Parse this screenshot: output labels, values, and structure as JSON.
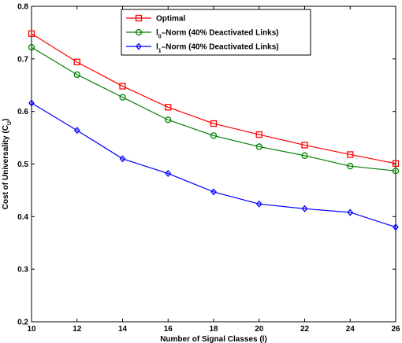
{
  "chart_data": {
    "type": "line",
    "xlabel": "Number of Signal Classes (l)",
    "ylabel": "Cost of Universality (C",
    "ylabel_sub": "U",
    "ylabel_close": ")",
    "xlim": [
      10,
      26
    ],
    "ylim": [
      0.2,
      0.8
    ],
    "xticks": [
      10,
      12,
      14,
      16,
      18,
      20,
      22,
      24,
      26
    ],
    "yticks": [
      0.2,
      0.3,
      0.4,
      0.5,
      0.6,
      0.7,
      0.8
    ],
    "grid": false,
    "legend_position": "top-center",
    "x": [
      10,
      12,
      14,
      16,
      18,
      20,
      22,
      24,
      26
    ],
    "series": [
      {
        "name": "Optimal",
        "label_main": "Optimal",
        "label_sub": "",
        "label_rest": "",
        "color": "#ff0000",
        "marker": "square",
        "values": [
          0.748,
          0.694,
          0.648,
          0.608,
          0.577,
          0.556,
          0.536,
          0.518,
          0.501
        ]
      },
      {
        "name": "l0–Norm (40% Deactivated Links)",
        "label_main": "l",
        "label_sub": "0",
        "label_rest": "–Norm (40% Deactivated Links)",
        "color": "#008000",
        "marker": "circle",
        "values": [
          0.722,
          0.67,
          0.627,
          0.584,
          0.554,
          0.533,
          0.516,
          0.496,
          0.487
        ]
      },
      {
        "name": "l1–Norm (40% Deactivated Links)",
        "label_main": "l",
        "label_sub": "1",
        "label_rest": "–Norm (40% Deactivated Links)",
        "color": "#0000ff",
        "marker": "diamond",
        "values": [
          0.616,
          0.564,
          0.51,
          0.482,
          0.447,
          0.424,
          0.415,
          0.408,
          0.38
        ]
      }
    ]
  }
}
